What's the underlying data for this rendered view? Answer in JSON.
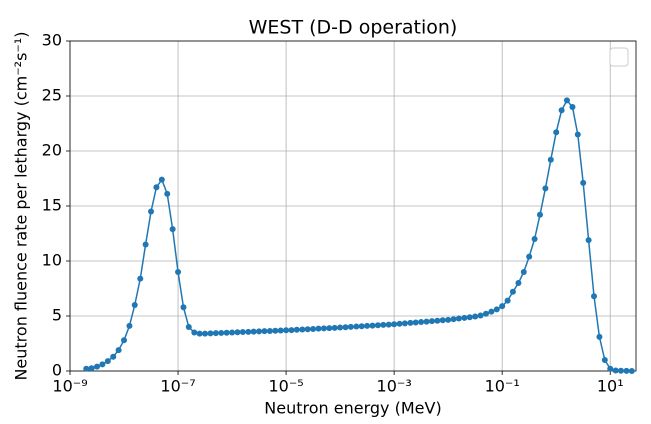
{
  "chart_data": {
    "type": "line",
    "title": "WEST (D-D operation)",
    "xlabel": "Neutron energy (MeV)",
    "ylabel": "Neutron fluence rate per lethargy (cm⁻²s⁻¹)",
    "xscale": "log",
    "grid": true,
    "legend": "upper right",
    "color": "#1f77b4",
    "xlim": [
      1e-09,
      30
    ],
    "ylim": [
      0,
      30
    ],
    "xticks": [
      {
        "value": 1e-09,
        "label": "10⁻⁹"
      },
      {
        "value": 1e-07,
        "label": "10⁻⁷"
      },
      {
        "value": 1e-05,
        "label": "10⁻⁵"
      },
      {
        "value": 0.001,
        "label": "10⁻³"
      },
      {
        "value": 0.1,
        "label": "10⁻¹"
      },
      {
        "value": 10,
        "label": "10¹"
      }
    ],
    "yticks": [
      0,
      5,
      10,
      15,
      20,
      25,
      30
    ],
    "x": [
      2e-09,
      2.51e-09,
      3.16e-09,
      3.98e-09,
      5.01e-09,
      6.31e-09,
      7.94e-09,
      1e-08,
      1.26e-08,
      1.58e-08,
      2e-08,
      2.51e-08,
      3.16e-08,
      3.98e-08,
      5.01e-08,
      6.31e-08,
      7.94e-08,
      1e-07,
      1.26e-07,
      1.58e-07,
      2e-07,
      2.51e-07,
      3.16e-07,
      3.98e-07,
      5.01e-07,
      6.31e-07,
      7.94e-07,
      1e-06,
      1.26e-06,
      1.58e-06,
      2e-06,
      2.51e-06,
      3.16e-06,
      3.98e-06,
      5.01e-06,
      6.31e-06,
      7.94e-06,
      1e-05,
      1.26e-05,
      1.58e-05,
      2e-05,
      2.51e-05,
      3.16e-05,
      3.98e-05,
      5.01e-05,
      6.31e-05,
      7.94e-05,
      0.0001,
      0.000126,
      0.000158,
      0.0002,
      0.000251,
      0.000316,
      0.000398,
      0.000501,
      0.000631,
      0.000794,
      0.001,
      0.00126,
      0.00158,
      0.002,
      0.00251,
      0.00316,
      0.00398,
      0.00501,
      0.00631,
      0.00794,
      0.01,
      0.0126,
      0.0158,
      0.02,
      0.0251,
      0.0316,
      0.0398,
      0.0501,
      0.0631,
      0.0794,
      0.1,
      0.126,
      0.158,
      0.2,
      0.251,
      0.316,
      0.398,
      0.501,
      0.631,
      0.794,
      1,
      1.26,
      1.58,
      2,
      2.51,
      3.16,
      3.98,
      5.01,
      6.31,
      7.94,
      10,
      12.6,
      15.8,
      20,
      25.1
    ],
    "values": [
      0.2,
      0.25,
      0.4,
      0.6,
      0.9,
      1.3,
      1.9,
      2.8,
      4.1,
      6.0,
      8.4,
      11.5,
      14.5,
      16.7,
      17.4,
      16.1,
      12.9,
      9.0,
      5.8,
      4.0,
      3.5,
      3.4,
      3.4,
      3.42,
      3.44,
      3.46,
      3.48,
      3.5,
      3.52,
      3.54,
      3.56,
      3.58,
      3.6,
      3.62,
      3.64,
      3.66,
      3.68,
      3.7,
      3.72,
      3.75,
      3.77,
      3.8,
      3.82,
      3.85,
      3.87,
      3.9,
      3.92,
      3.95,
      3.98,
      4.01,
      4.04,
      4.07,
      4.1,
      4.13,
      4.16,
      4.19,
      4.22,
      4.25,
      4.29,
      4.33,
      4.37,
      4.41,
      4.45,
      4.49,
      4.53,
      4.57,
      4.61,
      4.65,
      4.71,
      4.77,
      4.83,
      4.89,
      4.95,
      5.05,
      5.2,
      5.4,
      5.6,
      5.9,
      6.4,
      7.2,
      8.0,
      9.0,
      10.4,
      12.0,
      14.2,
      16.6,
      19.2,
      21.7,
      23.7,
      24.6,
      24.0,
      21.5,
      17.1,
      11.9,
      6.8,
      3.1,
      1.0,
      0.2,
      0.05,
      0.02,
      0.01,
      0
    ]
  }
}
